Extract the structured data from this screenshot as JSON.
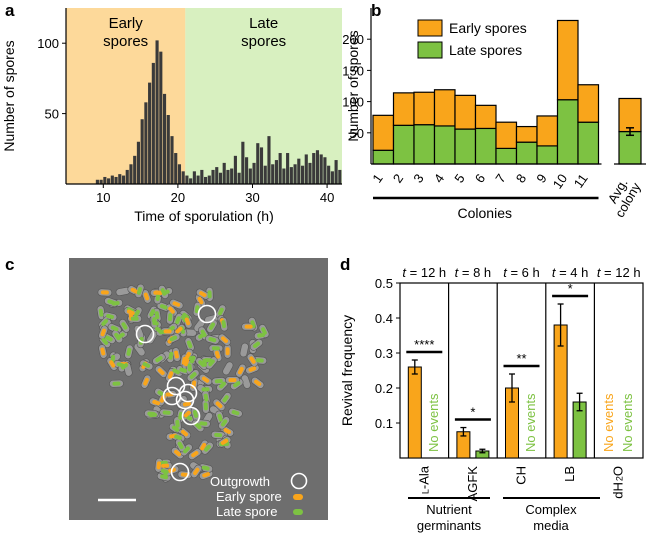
{
  "colors": {
    "early": "#f9a51b",
    "late": "#7dc242",
    "early_bg": "#fdd99a",
    "late_bg": "#d8f0c0",
    "bar_dark": "#3a3a3a",
    "micro_bg": "#6e6e6e"
  },
  "panels": {
    "a": "a",
    "b": "b",
    "c": "c",
    "d": "d"
  },
  "chart_data": [
    {
      "panel": "a",
      "type": "bar",
      "title": "",
      "xlabel": "Time of sporulation (h)",
      "ylabel": "Number of spores",
      "xlim": [
        5,
        42
      ],
      "ylim": [
        0,
        125
      ],
      "xticks": [
        10,
        20,
        30,
        40
      ],
      "yticks": [
        50,
        100
      ],
      "regions": [
        {
          "label": "Early spores",
          "line1": "Early",
          "line2": "spores",
          "from": 5,
          "to": 21
        },
        {
          "label": "Late spores",
          "line1": "Late",
          "line2": "spores",
          "from": 21,
          "to": 42
        }
      ],
      "bin_start": 9,
      "bin_width": 0.5,
      "values": [
        3,
        3,
        5,
        4,
        6,
        5,
        7,
        6,
        10,
        14,
        20,
        30,
        46,
        58,
        72,
        86,
        102,
        94,
        64,
        49,
        34,
        22,
        14,
        9,
        6,
        4,
        9,
        6,
        10,
        5,
        6,
        10,
        12,
        8,
        15,
        10,
        11,
        20,
        8,
        30,
        19,
        11,
        15,
        29,
        26,
        13,
        34,
        14,
        17,
        22,
        11,
        22,
        12,
        14,
        18,
        13,
        21,
        15,
        22,
        24,
        21,
        19,
        13,
        9,
        17,
        10
      ]
    },
    {
      "panel": "b",
      "type": "bar",
      "stacked": true,
      "ylabel": "Number of spores",
      "xlabel": "Colonies",
      "ylim": [
        0,
        250
      ],
      "yticks": [
        50,
        100,
        150,
        200
      ],
      "categories": [
        "1",
        "2",
        "3",
        "4",
        "5",
        "6",
        "7",
        "8",
        "9",
        "10",
        "11"
      ],
      "series": [
        {
          "name": "Late spores",
          "values": [
            22,
            62,
            63,
            61,
            56,
            57,
            25,
            35,
            29,
            103,
            67
          ]
        },
        {
          "name": "Early spores",
          "values": [
            56,
            52,
            52,
            58,
            54,
            37,
            42,
            25,
            48,
            127,
            60
          ]
        }
      ],
      "avg": {
        "label1": "Avg.",
        "label2": "colony",
        "late": 52,
        "total": 105,
        "err": 6
      },
      "legend": [
        "Early spores",
        "Late spores"
      ]
    },
    {
      "panel": "d",
      "type": "bar",
      "ylabel": "Revival frequency",
      "ylim": [
        0,
        0.5
      ],
      "yticks": [
        0.1,
        0.2,
        0.3,
        0.4,
        0.5
      ],
      "ytick_labels": [
        "0.1",
        "0.2",
        "0.3",
        "0.4",
        "0.5"
      ],
      "groups": [
        {
          "time": "t = 12 h",
          "t": "t",
          "time_val": " = 12 h",
          "label": "L-Ala",
          "early": 0.26,
          "early_err": 0.02,
          "late": null,
          "sig": "****",
          "no_events": [
            "late"
          ]
        },
        {
          "time": "t = 8 h",
          "t": "t",
          "time_val": " = 8 h",
          "label": "AGFK",
          "early": 0.075,
          "early_err": 0.012,
          "late": 0.02,
          "late_err": 0.005,
          "sig": "*",
          "no_events": []
        },
        {
          "time": "t = 6 h",
          "t": "t",
          "time_val": " = 6 h",
          "label": "CH",
          "early": 0.2,
          "early_err": 0.04,
          "late": null,
          "sig": "**",
          "no_events": [
            "late"
          ]
        },
        {
          "time": "t = 4 h",
          "t": "t",
          "time_val": " = 4 h",
          "label": "LB",
          "early": 0.38,
          "early_err": 0.06,
          "late": 0.16,
          "late_err": 0.025,
          "sig": "*",
          "no_events": []
        },
        {
          "time": "t = 12 h",
          "t": "t",
          "time_val": " = 12 h",
          "label": "dH2O",
          "early": null,
          "late": null,
          "sig": "",
          "no_events": [
            "early",
            "late"
          ]
        }
      ],
      "no_events_text": "No events",
      "categories_text": {
        "lala": "L-Ala",
        "agfk": "AGFK",
        "ch": "CH",
        "lb": "LB",
        "dh2o_main": "dH",
        "dh2o_sub": "2",
        "dh2o_end": "O"
      },
      "group_labels": {
        "nutrient1": "Nutrient",
        "nutrient2": "germinants",
        "complex1": "Complex",
        "complex2": "media"
      }
    }
  ],
  "panel_c": {
    "legend": {
      "outgrowth": "Outgrowth",
      "early": "Early spore",
      "late": "Late spore"
    }
  }
}
